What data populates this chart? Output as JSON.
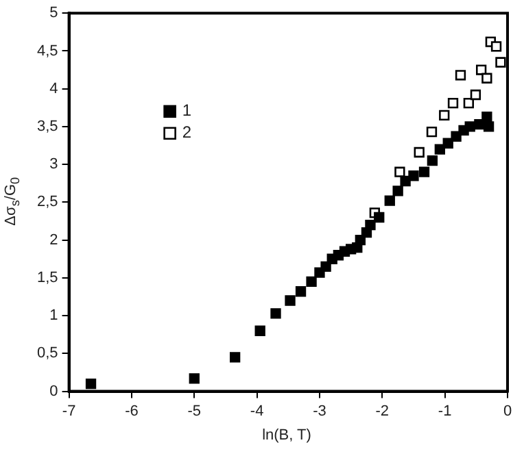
{
  "chart_data": {
    "type": "scatter",
    "xlabel": "ln(B, T)",
    "ylabel": "Δσ$_{s}$/G$_{0}$",
    "xlim": [
      -7,
      0
    ],
    "xticks": [
      -7,
      -6,
      -5,
      -4,
      -3,
      -2,
      -1,
      0
    ],
    "ylim": [
      0,
      5
    ],
    "yticks": [
      0,
      {
        "value": 0.5,
        "label": "0,5"
      },
      1,
      {
        "value": 1.5,
        "label": "1,5"
      },
      2,
      {
        "value": 2.5,
        "label": "2,5"
      },
      3,
      {
        "value": 3.5,
        "label": "3,5"
      },
      4,
      {
        "value": 4.5,
        "label": "4,5"
      },
      5
    ],
    "marker": "square",
    "legend": "top left",
    "grid": false,
    "series": [
      {
        "name": "1",
        "color": "#000000",
        "x": [
          -6.65,
          -5.0,
          -4.35,
          -3.95,
          -3.7,
          -3.47,
          -3.3,
          -3.13,
          -3.0,
          -2.9,
          -2.8,
          -2.7,
          -2.6,
          -2.5,
          -2.4,
          -2.35,
          -2.25,
          -2.19,
          -2.05,
          -1.88,
          -1.75,
          -1.63,
          -1.5,
          -1.33,
          -1.2,
          -1.08,
          -0.95,
          -0.82,
          -0.7,
          -0.6,
          -0.45,
          -0.33,
          -0.3
        ],
        "values": [
          0.1,
          0.17,
          0.45,
          0.8,
          1.03,
          1.2,
          1.32,
          1.45,
          1.57,
          1.65,
          1.75,
          1.8,
          1.85,
          1.88,
          1.9,
          2.0,
          2.1,
          2.2,
          2.3,
          2.52,
          2.65,
          2.78,
          2.85,
          2.9,
          3.05,
          3.2,
          3.28,
          3.37,
          3.45,
          3.5,
          3.53,
          3.63,
          3.5
        ]
      },
      {
        "name": "2",
        "color": "#000000",
        "x": [
          -2.12,
          -1.72,
          -1.41,
          -1.21,
          -1.01,
          -0.87,
          -0.75,
          -0.62,
          -0.51,
          -0.42,
          -0.33,
          -0.27,
          -0.18,
          -0.11
        ],
        "values": [
          2.36,
          2.9,
          3.16,
          3.43,
          3.65,
          3.81,
          4.18,
          3.81,
          3.92,
          4.25,
          4.14,
          4.62,
          4.56,
          4.35
        ]
      }
    ]
  }
}
